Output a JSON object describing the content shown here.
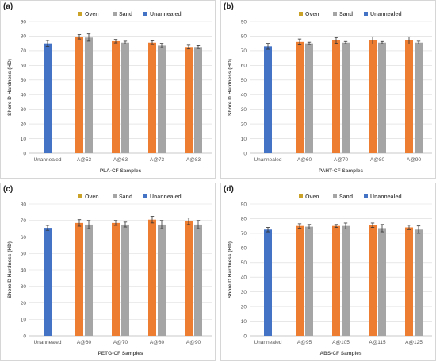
{
  "colors": {
    "oven": "#ED7D31",
    "sand": "#A5A5A5",
    "unannealed": "#4472C4",
    "oven_legend": "#C9A227",
    "grid": "#D9D9D9",
    "axis": "#BFBFBF"
  },
  "chart_data": [
    {
      "panel_label": "(a)",
      "type": "bar",
      "categories": [
        "Unannealed",
        "A@53",
        "A@63",
        "A@73",
        "A@83"
      ],
      "series": [
        {
          "name": "Oven",
          "values": [
            null,
            79.5,
            76.5,
            75.5,
            72.5
          ],
          "errors": [
            null,
            1.5,
            1.2,
            1.3,
            1.3
          ]
        },
        {
          "name": "Sand",
          "values": [
            null,
            79.0,
            75.5,
            73.5,
            72.5
          ],
          "errors": [
            null,
            2.5,
            1.0,
            1.5,
            1.0
          ]
        },
        {
          "name": "Unannealed",
          "values": [
            75.0,
            null,
            null,
            null,
            null
          ],
          "errors": [
            2.0,
            null,
            null,
            null,
            null
          ]
        }
      ],
      "ylim": [
        0,
        90
      ],
      "yticks": [
        0,
        10,
        20,
        30,
        40,
        50,
        60,
        70,
        80,
        90
      ],
      "ylabel": "Shore D Hardness (HD)",
      "xlabel": "PLA-CF Samples",
      "legend_position": "top",
      "grid": true
    },
    {
      "panel_label": "(b)",
      "type": "bar",
      "categories": [
        "Unannealed",
        "A@60",
        "A@70",
        "A@80",
        "A@90"
      ],
      "series": [
        {
          "name": "Oven",
          "values": [
            null,
            76.0,
            77.0,
            77.0,
            77.0
          ],
          "errors": [
            null,
            2.0,
            2.0,
            2.5,
            2.5
          ]
        },
        {
          "name": "Sand",
          "values": [
            null,
            75.0,
            75.5,
            75.5,
            75.5
          ],
          "errors": [
            null,
            0.8,
            0.8,
            0.8,
            1.0
          ]
        },
        {
          "name": "Unannealed",
          "values": [
            73.0,
            null,
            null,
            null,
            null
          ],
          "errors": [
            2.0,
            null,
            null,
            null,
            null
          ]
        }
      ],
      "ylim": [
        0,
        90
      ],
      "yticks": [
        0,
        10,
        20,
        30,
        40,
        50,
        60,
        70,
        80,
        90
      ],
      "ylabel": "Shore D Hardness (HD)",
      "xlabel": "PAHT-CF Samples",
      "legend_position": "top",
      "grid": true
    },
    {
      "panel_label": "(c)",
      "type": "bar",
      "categories": [
        "Unannealed",
        "A@60",
        "A@70",
        "A@80",
        "A@90"
      ],
      "series": [
        {
          "name": "Oven",
          "values": [
            null,
            68.5,
            68.5,
            70.5,
            69.5
          ],
          "errors": [
            null,
            2.0,
            1.5,
            2.0,
            2.0
          ]
        },
        {
          "name": "Sand",
          "values": [
            null,
            67.5,
            67.5,
            67.5,
            67.5
          ],
          "errors": [
            null,
            2.5,
            1.5,
            2.5,
            2.5
          ]
        },
        {
          "name": "Unannealed",
          "values": [
            65.5,
            null,
            null,
            null,
            null
          ],
          "errors": [
            1.5,
            null,
            null,
            null,
            null
          ]
        }
      ],
      "ylim": [
        0,
        80
      ],
      "yticks": [
        0,
        10,
        20,
        30,
        40,
        50,
        60,
        70,
        80
      ],
      "ylabel": "Shore D Hardness (HD)",
      "xlabel": "PETG-CF Samples",
      "legend_position": "top",
      "grid": true
    },
    {
      "panel_label": "(d)",
      "type": "bar",
      "categories": [
        "Unannealed",
        "A@95",
        "A@105",
        "A@115",
        "A@125"
      ],
      "series": [
        {
          "name": "Oven",
          "values": [
            null,
            75.0,
            75.0,
            75.5,
            74.0
          ],
          "errors": [
            null,
            1.5,
            1.0,
            1.5,
            1.5
          ]
        },
        {
          "name": "Sand",
          "values": [
            null,
            74.5,
            75.0,
            73.5,
            72.5
          ],
          "errors": [
            null,
            1.5,
            2.0,
            2.5,
            2.5
          ]
        },
        {
          "name": "Unannealed",
          "values": [
            72.5,
            null,
            null,
            null,
            null
          ],
          "errors": [
            1.5,
            null,
            null,
            null,
            null
          ]
        }
      ],
      "ylim": [
        0,
        90
      ],
      "yticks": [
        0,
        10,
        20,
        30,
        40,
        50,
        60,
        70,
        80,
        90
      ],
      "ylabel": "Shore D Hardness (HD)",
      "xlabel": "ABS-CF Samples",
      "legend_position": "top",
      "grid": true
    }
  ]
}
